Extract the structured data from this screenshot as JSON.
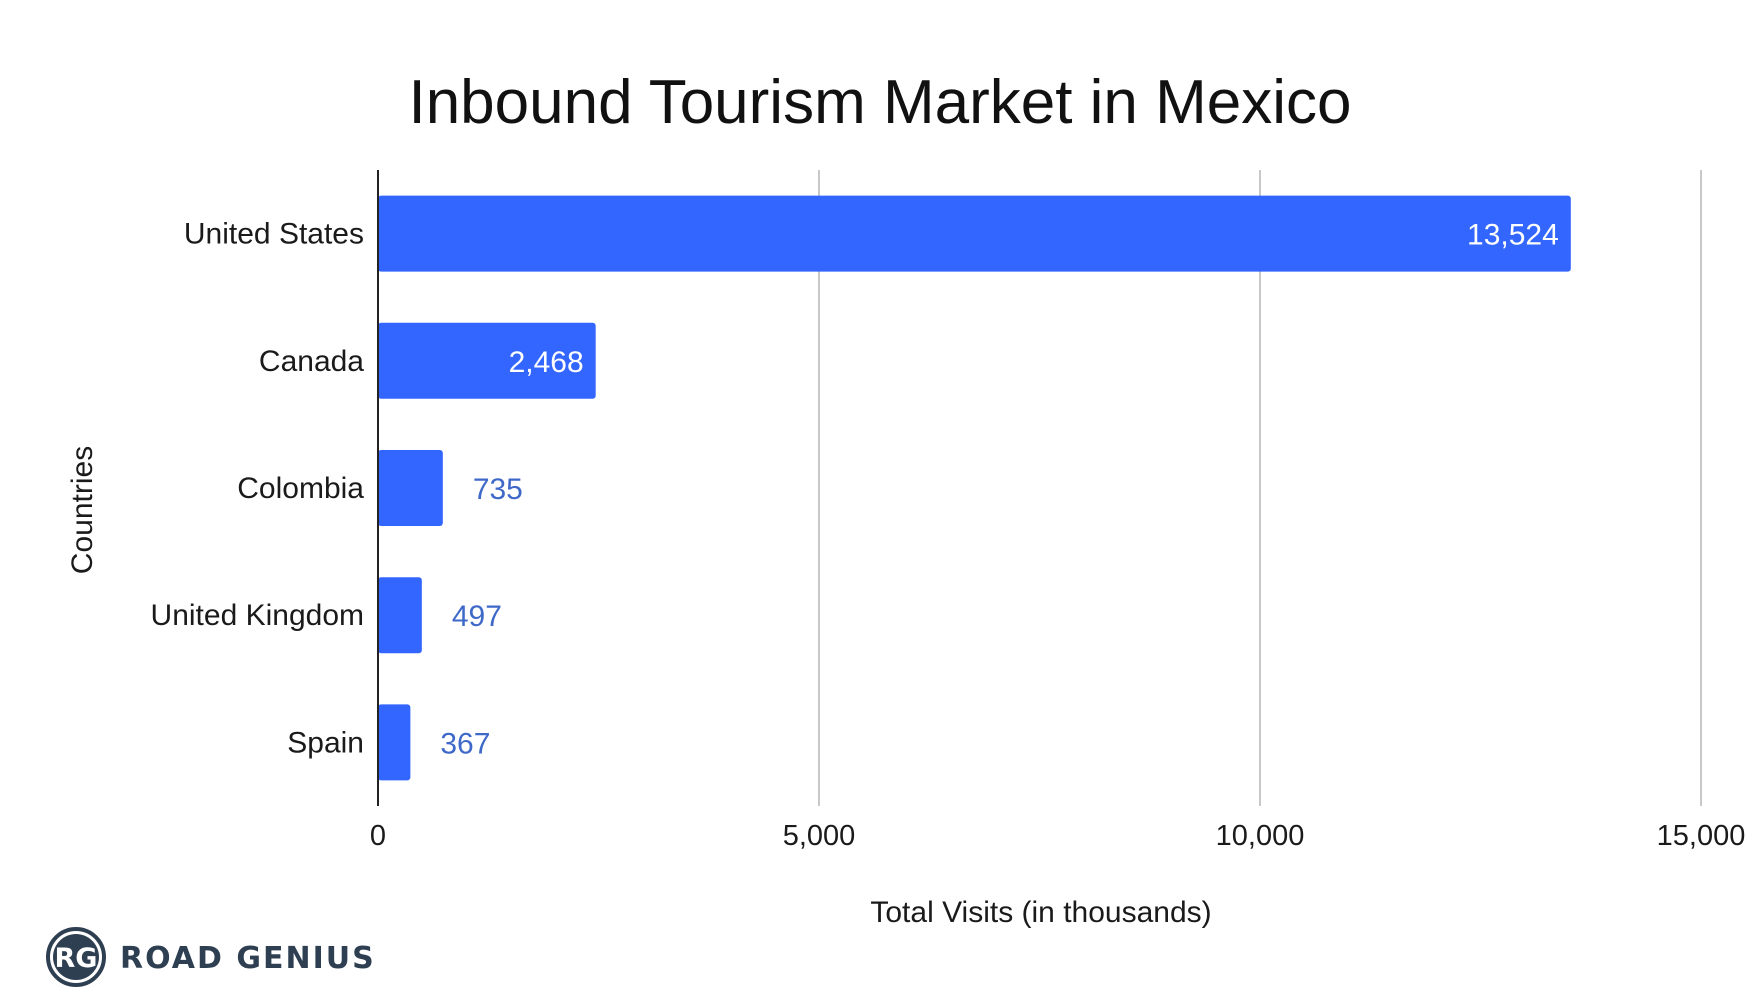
{
  "chart_data": {
    "type": "bar",
    "orientation": "horizontal",
    "title": "Inbound Tourism Market in Mexico",
    "xlabel": "Total Visits (in thousands)",
    "ylabel": "Countries",
    "categories": [
      "United States",
      "Canada",
      "Colombia",
      "United Kingdom",
      "Spain"
    ],
    "values": [
      13524,
      2468,
      735,
      497,
      367
    ],
    "value_labels": [
      "13,524",
      "2,468",
      "735",
      "497",
      "367"
    ],
    "xlim": [
      0,
      15000
    ],
    "xticks": [
      0,
      5000,
      10000,
      15000
    ],
    "xtick_labels": [
      "0",
      "5,000",
      "10,000",
      "15,000"
    ],
    "grid": true,
    "bar_color": "#3366ff",
    "outside_label_color": "#3f69c9"
  },
  "logo": {
    "monogram": "RG",
    "text": "ROAD GENIUS",
    "color": "#2f3f52"
  }
}
